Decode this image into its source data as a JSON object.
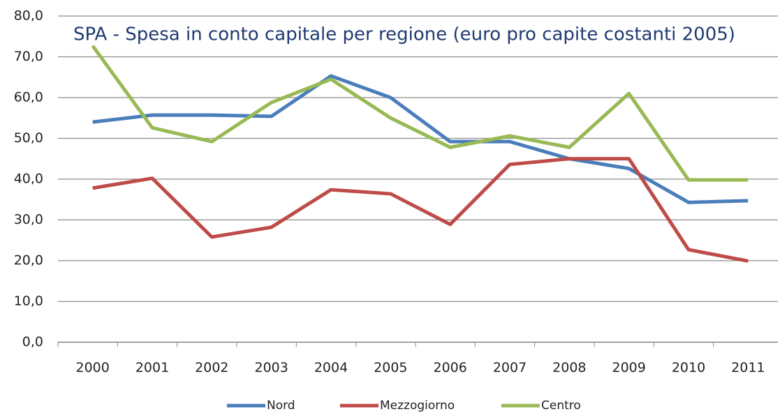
{
  "chart_data": {
    "type": "line",
    "title": "SPA - Spesa in conto capitale per regione (euro pro capite costanti 2005)",
    "categories": [
      "2000",
      "2001",
      "2002",
      "2003",
      "2004",
      "2005",
      "2006",
      "2007",
      "2008",
      "2009",
      "2010",
      "2011"
    ],
    "series": [
      {
        "name": "Nord",
        "color": "#4a7ebb",
        "values": [
          54.0,
          55.7,
          55.7,
          55.4,
          65.3,
          60.0,
          49.2,
          49.2,
          45.0,
          42.6,
          34.3,
          34.7
        ]
      },
      {
        "name": "Mezzogiorno",
        "color": "#be4b48",
        "values": [
          37.8,
          40.2,
          25.8,
          28.2,
          37.4,
          36.4,
          28.9,
          43.6,
          45.0,
          45.0,
          22.7,
          19.9
        ]
      },
      {
        "name": "Centro",
        "color": "#98b954",
        "values": [
          72.7,
          52.6,
          49.2,
          58.8,
          64.5,
          55.0,
          47.8,
          50.6,
          47.8,
          61.0,
          39.8,
          39.8
        ]
      }
    ],
    "ylim": [
      0,
      80
    ],
    "yticks": [
      {
        "value": 0,
        "label": "0,0"
      },
      {
        "value": 10,
        "label": "10,0"
      },
      {
        "value": 20,
        "label": "20,0"
      },
      {
        "value": 30,
        "label": "30,0"
      },
      {
        "value": 40,
        "label": "40,0"
      },
      {
        "value": 50,
        "label": "50,0"
      },
      {
        "value": 60,
        "label": "60,0"
      },
      {
        "value": 70,
        "label": "70,0"
      },
      {
        "value": 80,
        "label": "80,0"
      }
    ],
    "grid": true,
    "legend": "bottom"
  }
}
